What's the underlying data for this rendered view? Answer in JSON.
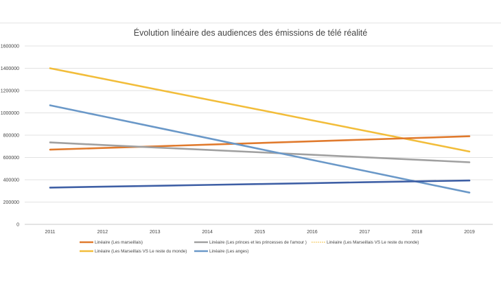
{
  "chart_data": {
    "type": "line",
    "title": "Évolution linéaire des audiences des émissions de télé réalité",
    "xlabel": "",
    "ylabel": "",
    "x": [
      "2011",
      "2012",
      "2013",
      "2014",
      "2015",
      "2016",
      "2017",
      "2018",
      "2019"
    ],
    "ylim": [
      0,
      1600000
    ],
    "yticks": [
      0,
      200000,
      400000,
      600000,
      800000,
      1000000,
      1200000,
      1400000,
      1600000
    ],
    "ytick_labels": [
      "0",
      "200000",
      "400000",
      "600000",
      "800000",
      "1000000",
      "1200000",
      "1400000",
      "1600000"
    ],
    "grid": true,
    "legend_position": "bottom",
    "series": [
      {
        "name": "Linéaire (Les marseillais)",
        "color": "#e07a2d",
        "style": "solid",
        "values": [
          670000,
          685000,
          700000,
          715000,
          730000,
          745000,
          760000,
          775000,
          790000
        ]
      },
      {
        "name": "Linéaire (Les princes et les princesses de l'amour )",
        "color": "#a0a0a0",
        "style": "solid",
        "values": [
          735000,
          712000,
          690000,
          668000,
          646000,
          624000,
          602000,
          580000,
          557000
        ]
      },
      {
        "name": "Linéaire (Les Marseillais VS Le reste du monde)",
        "color": "#f2bd3a",
        "style": "dotted",
        "values": [
          1400000,
          1307000,
          1213000,
          1120000,
          1027000,
          933000,
          840000,
          747000,
          653000
        ]
      },
      {
        "name": "Linéaire (Les Marseillais VS Le reste du monde)",
        "color": "#f2bd3a",
        "style": "solid",
        "values": [
          1400000,
          1307000,
          1213000,
          1120000,
          1027000,
          933000,
          840000,
          747000,
          653000
        ]
      },
      {
        "name": "Linéaire (Les anges)",
        "color": "#6a98c8",
        "style": "solid",
        "values": [
          1068000,
          970000,
          872000,
          774000,
          676000,
          578000,
          480000,
          382000,
          285000
        ]
      },
      {
        "color": "#3e5fa5",
        "style": "solid",
        "values": [
          330000,
          338000,
          346000,
          354000,
          362000,
          370000,
          378000,
          386000,
          393000
        ]
      }
    ]
  }
}
